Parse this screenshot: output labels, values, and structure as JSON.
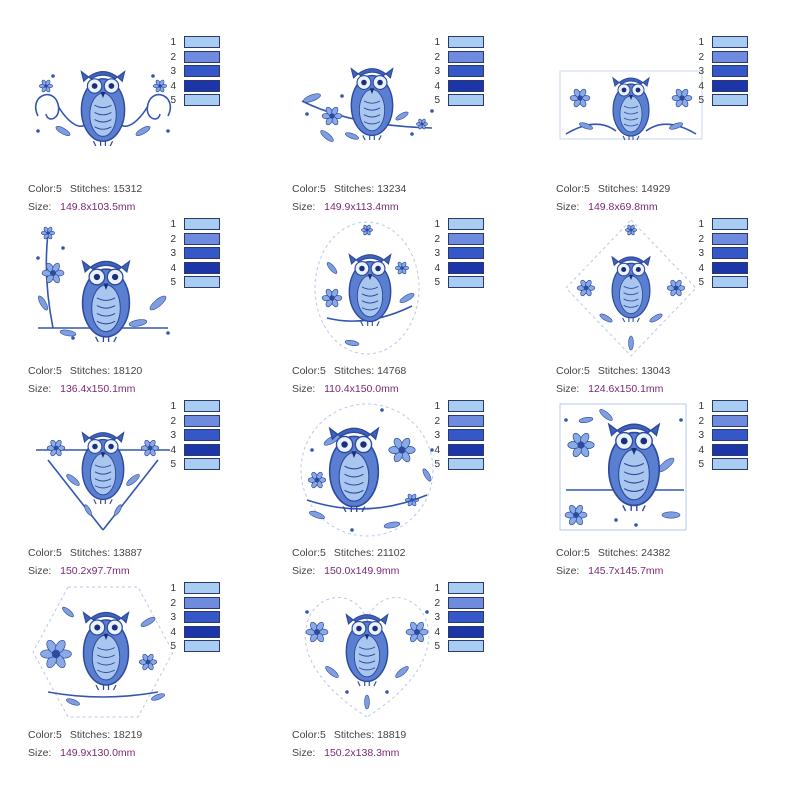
{
  "palette_colors": [
    "#a9cdf2",
    "#6f8bde",
    "#3557c8",
    "#1c35a8",
    "#a9cdf2"
  ],
  "labels": {
    "color": "Color:",
    "stitches": "Stitches:",
    "size": "Size:"
  },
  "designs": [
    {
      "shape": "scroll",
      "color": "5",
      "stitches": "15312",
      "size": "149.8x103.5mm"
    },
    {
      "shape": "branch",
      "color": "5",
      "stitches": "13234",
      "size": "149.9x113.4mm"
    },
    {
      "shape": "rect",
      "color": "5",
      "stitches": "14929",
      "size": "149.8x69.8mm"
    },
    {
      "shape": "corner",
      "color": "5",
      "stitches": "18120",
      "size": "136.4x150.1mm"
    },
    {
      "shape": "oval",
      "color": "5",
      "stitches": "14768",
      "size": "110.4x150.0mm"
    },
    {
      "shape": "diamond",
      "color": "5",
      "stitches": "13043",
      "size": "124.6x150.1mm"
    },
    {
      "shape": "triangle",
      "color": "5",
      "stitches": "13887",
      "size": "150.2x97.7mm"
    },
    {
      "shape": "circle",
      "color": "5",
      "stitches": "21102",
      "size": "150.0x149.9mm"
    },
    {
      "shape": "square",
      "color": "5",
      "stitches": "24382",
      "size": "145.7x145.7mm"
    },
    {
      "shape": "hexagon",
      "color": "5",
      "stitches": "18219",
      "size": "149.9x130.0mm"
    },
    {
      "shape": "heart",
      "color": "5",
      "stitches": "18819",
      "size": "150.2x138.3mm"
    }
  ]
}
